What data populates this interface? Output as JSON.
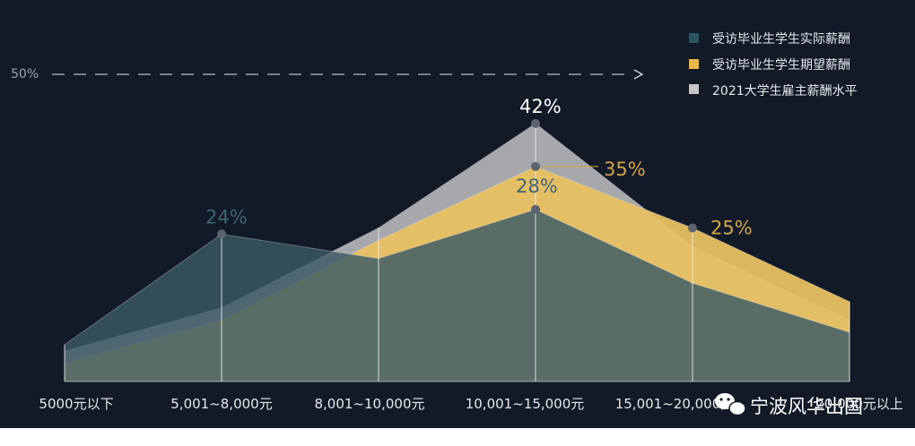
{
  "chart_data": {
    "type": "area",
    "categories": [
      "5000元以下",
      "5,001~8,000元",
      "8,001~10,000元",
      "10,001~15,000元",
      "15,001~20,000元",
      "20,000元以上"
    ],
    "series": [
      {
        "name": "2021大学生雇主薪酬水平",
        "color": "#b0b0b3",
        "values": [
          5,
          12,
          25,
          42,
          22,
          10
        ]
      },
      {
        "name": "受访毕业生学生期望薪酬",
        "color": "#e8c062",
        "values": [
          3,
          10,
          23,
          35,
          25,
          13
        ]
      },
      {
        "name": "受访毕业生学生实际薪酬",
        "color": "#3a5966",
        "values": [
          6,
          24,
          20,
          28,
          16,
          8
        ]
      }
    ],
    "value_labels": [
      {
        "text": "24%",
        "series": "受访毕业生学生实际薪酬",
        "category_index": 1,
        "color": "#3f6473"
      },
      {
        "text": "42%",
        "series": "2021大学生雇主薪酬水平",
        "category_index": 3,
        "color": "#ffffff"
      },
      {
        "text": "35%",
        "series": "受访毕业生学生期望薪酬",
        "category_index": 3,
        "color": "#d4a44a"
      },
      {
        "text": "28%",
        "series": "受访毕业生学生实际薪酬",
        "category_index": 3,
        "color": "#3f6473"
      },
      {
        "text": "25%",
        "series": "受访毕业生学生期望薪酬",
        "category_index": 4,
        "color": "#d4a44a"
      }
    ],
    "reference_line": {
      "label": "50%",
      "value": 50
    },
    "ylim": [
      0,
      50
    ],
    "legend_position": "top-right",
    "grid": false,
    "background": "#121a27"
  },
  "legend": [
    {
      "label": "受访毕业生学生实际薪酬",
      "color": "#2c5360"
    },
    {
      "label": "受访毕业生学生期望薪酬",
      "color": "#e8b84c"
    },
    {
      "label": "2021大学生雇主薪酬水平",
      "color": "#c6c6c8"
    }
  ],
  "watermark": {
    "text": "宁波风华出国",
    "icon": "wechat-icon"
  }
}
